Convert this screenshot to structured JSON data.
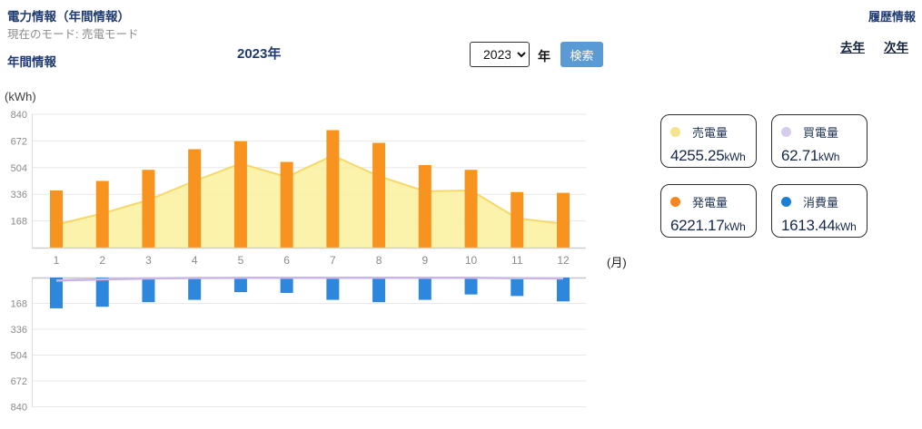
{
  "header": {
    "title": "電力情報（年間情報）",
    "mode_label": "現在のモード: 売電モード",
    "history_link": "履歴情報",
    "section_label": "年間情報",
    "chart_title": "2023年",
    "year_select_value": "2023",
    "year_suffix": "年",
    "search_button": "検索",
    "prev_year_link": "去年",
    "next_year_link": "次年"
  },
  "chart_data": {
    "type": "combo",
    "title": "2023年",
    "unit_label": "(kWh)",
    "month_axis_label": "(月)",
    "categories": [
      1,
      2,
      3,
      4,
      5,
      6,
      7,
      8,
      9,
      10,
      11,
      12
    ],
    "y_ticks": [
      168,
      336,
      504,
      672,
      840
    ],
    "y_max": 840,
    "grid": true,
    "legend_position": "right",
    "series": [
      {
        "name": "売電量",
        "type": "area-up",
        "fill_color": "#fbf0a0",
        "line_color": "#f5d969",
        "values": [
          145,
          215,
          300,
          420,
          530,
          445,
          580,
          450,
          355,
          360,
          185,
          150
        ],
        "total": "4255.25",
        "unit": "kWh"
      },
      {
        "name": "買電量",
        "type": "line-down",
        "line_color": "#c9b6e6",
        "values": [
          20,
          12,
          6,
          3,
          2,
          2,
          2,
          2,
          2,
          2,
          4,
          6
        ],
        "total": "62.71",
        "unit": "kWh"
      },
      {
        "name": "発電量",
        "type": "bar-up",
        "bar_color": "#f7931e",
        "values": [
          360,
          420,
          490,
          620,
          670,
          540,
          740,
          660,
          520,
          490,
          350,
          345
        ],
        "total": "6221.17",
        "unit": "kWh"
      },
      {
        "name": "消費量",
        "type": "bar-down",
        "bar_color": "#2d87dd",
        "values": [
          200,
          190,
          160,
          145,
          95,
          100,
          145,
          160,
          145,
          110,
          120,
          155
        ],
        "total": "1613.44",
        "unit": "kWh"
      }
    ],
    "axis_colors": {
      "grid": "#e8e8e8",
      "axis": "#cfcfcf",
      "tick_text": "#8a8a8a"
    }
  },
  "legend_cards": [
    {
      "label": "売電量",
      "value": "4255.25",
      "unit": "kWh",
      "dot_color": "#f7e38d"
    },
    {
      "label": "買電量",
      "value": "62.71",
      "unit": "kWh",
      "dot_color": "#d5cdeb"
    },
    {
      "label": "発電量",
      "value": "6221.17",
      "unit": "kWh",
      "dot_color": "#f6861f"
    },
    {
      "label": "消費量",
      "value": "1613.44",
      "unit": "kWh",
      "dot_color": "#1b7fd4"
    }
  ]
}
